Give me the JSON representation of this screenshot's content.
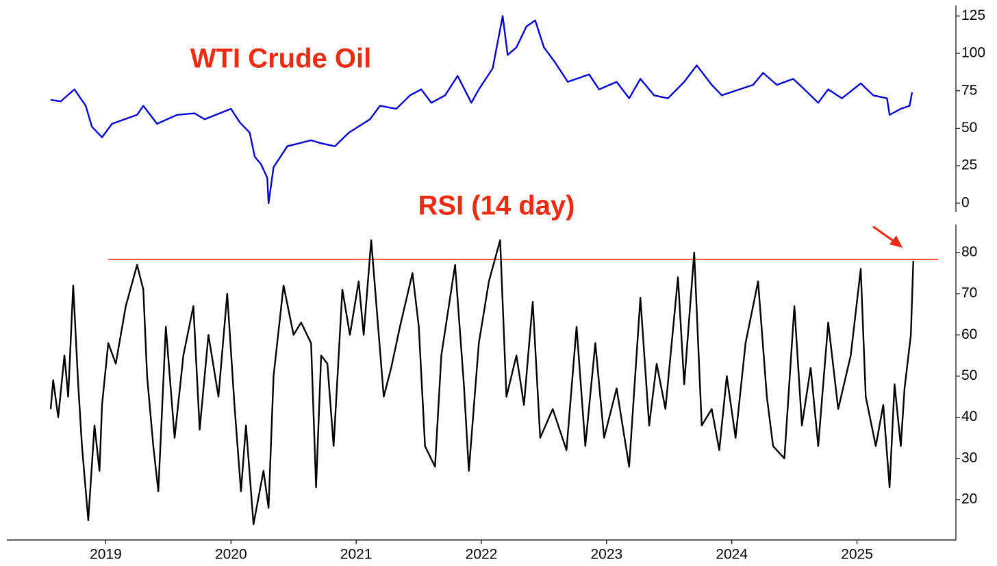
{
  "chart_data": [
    {
      "type": "line",
      "title": "WTI Crude Oil",
      "color": "#0000dd",
      "x": [
        2018.56,
        2018.64,
        2018.75,
        2018.84,
        2018.89,
        2018.97,
        2019.05,
        2019.25,
        2019.3,
        2019.41,
        2019.57,
        2019.71,
        2019.79,
        2020.0,
        2020.07,
        2020.15,
        2020.19,
        2020.24,
        2020.29,
        2020.3,
        2020.34,
        2020.45,
        2020.64,
        2020.72,
        2020.83,
        2020.94,
        2021.11,
        2021.19,
        2021.32,
        2021.43,
        2021.52,
        2021.6,
        2021.71,
        2021.81,
        2021.92,
        2021.98,
        2022.09,
        2022.17,
        2022.21,
        2022.28,
        2022.36,
        2022.43,
        2022.5,
        2022.58,
        2022.69,
        2022.86,
        2022.94,
        2023.08,
        2023.18,
        2023.27,
        2023.38,
        2023.49,
        2023.62,
        2023.72,
        2023.84,
        2023.92,
        2024.06,
        2024.17,
        2024.25,
        2024.36,
        2024.49,
        2024.58,
        2024.69,
        2024.77,
        2024.88,
        2025.03,
        2025.13,
        2025.24,
        2025.26,
        2025.35,
        2025.42,
        2025.44
      ],
      "values": [
        69,
        68,
        76,
        65,
        51,
        44,
        53,
        59,
        65,
        53,
        59,
        60,
        56,
        63,
        54,
        47,
        31,
        26,
        17,
        0,
        24,
        38,
        42,
        40,
        38,
        47,
        56,
        65,
        63,
        72,
        76,
        67,
        72,
        85,
        67,
        76,
        90,
        125,
        99,
        104,
        118,
        122,
        104,
        95,
        81,
        86,
        76,
        81,
        70,
        83,
        72,
        70,
        81,
        92,
        79,
        72,
        76,
        79,
        87,
        79,
        83,
        76,
        67,
        76,
        70,
        80,
        72,
        70,
        59,
        63,
        65,
        74
      ],
      "xlim": [
        2018.21,
        2025.79
      ],
      "ylim": [
        -6,
        132
      ],
      "yticks": [
        0,
        25,
        50,
        75,
        100,
        125
      ]
    },
    {
      "type": "line",
      "title": "RSI (14 day)",
      "color": "#000000",
      "x": [
        2018.56,
        2018.58,
        2018.62,
        2018.67,
        2018.7,
        2018.74,
        2018.78,
        2018.81,
        2018.86,
        2018.91,
        2018.95,
        2018.97,
        2019.02,
        2019.08,
        2019.16,
        2019.25,
        2019.3,
        2019.33,
        2019.38,
        2019.42,
        2019.48,
        2019.55,
        2019.62,
        2019.7,
        2019.75,
        2019.82,
        2019.9,
        2019.97,
        2020.03,
        2020.08,
        2020.12,
        2020.18,
        2020.26,
        2020.3,
        2020.34,
        2020.42,
        2020.5,
        2020.56,
        2020.64,
        2020.68,
        2020.72,
        2020.77,
        2020.82,
        2020.89,
        2020.95,
        2021.02,
        2021.06,
        2021.12,
        2021.22,
        2021.28,
        2021.35,
        2021.45,
        2021.5,
        2021.55,
        2021.63,
        2021.68,
        2021.79,
        2021.86,
        2021.9,
        2021.98,
        2022.06,
        2022.15,
        2022.2,
        2022.28,
        2022.34,
        2022.41,
        2022.47,
        2022.57,
        2022.68,
        2022.76,
        2022.83,
        2022.91,
        2022.98,
        2023.08,
        2023.18,
        2023.27,
        2023.34,
        2023.4,
        2023.47,
        2023.57,
        2023.62,
        2023.7,
        2023.76,
        2023.84,
        2023.9,
        2023.96,
        2024.03,
        2024.11,
        2024.21,
        2024.28,
        2024.33,
        2024.42,
        2024.5,
        2024.56,
        2024.63,
        2024.69,
        2024.77,
        2024.85,
        2024.95,
        2025.03,
        2025.07,
        2025.15,
        2025.21,
        2025.26,
        2025.3,
        2025.35,
        2025.38,
        2025.43,
        2025.45
      ],
      "values": [
        42,
        49,
        40,
        55,
        45,
        72,
        48,
        33,
        15,
        38,
        27,
        43,
        58,
        53,
        67,
        77,
        71,
        50,
        33,
        22,
        62,
        35,
        55,
        67,
        37,
        60,
        45,
        70,
        42,
        22,
        38,
        14,
        27,
        18,
        50,
        72,
        60,
        63,
        58,
        23,
        55,
        53,
        33,
        71,
        60,
        73,
        60,
        83,
        45,
        52,
        62,
        75,
        62,
        33,
        28,
        55,
        77,
        48,
        27,
        58,
        73,
        83,
        45,
        55,
        43,
        68,
        35,
        42,
        32,
        62,
        33,
        58,
        35,
        47,
        28,
        69,
        38,
        53,
        42,
        74,
        48,
        80,
        38,
        42,
        32,
        50,
        35,
        58,
        73,
        45,
        33,
        30,
        67,
        38,
        52,
        33,
        63,
        42,
        55,
        76,
        45,
        33,
        43,
        23,
        48,
        33,
        47,
        60,
        78
      ],
      "hline": {
        "value": 78.3,
        "x": [
          2019.02,
          2025.65
        ],
        "color": "#ff2a00"
      },
      "xlim": [
        2018.21,
        2025.79
      ],
      "ylim": [
        10.2,
        86.8
      ],
      "xticks": [
        2019,
        2020,
        2021,
        2022,
        2023,
        2024,
        2025
      ],
      "yticks": [
        20,
        30,
        40,
        50,
        60,
        70,
        80
      ]
    }
  ]
}
